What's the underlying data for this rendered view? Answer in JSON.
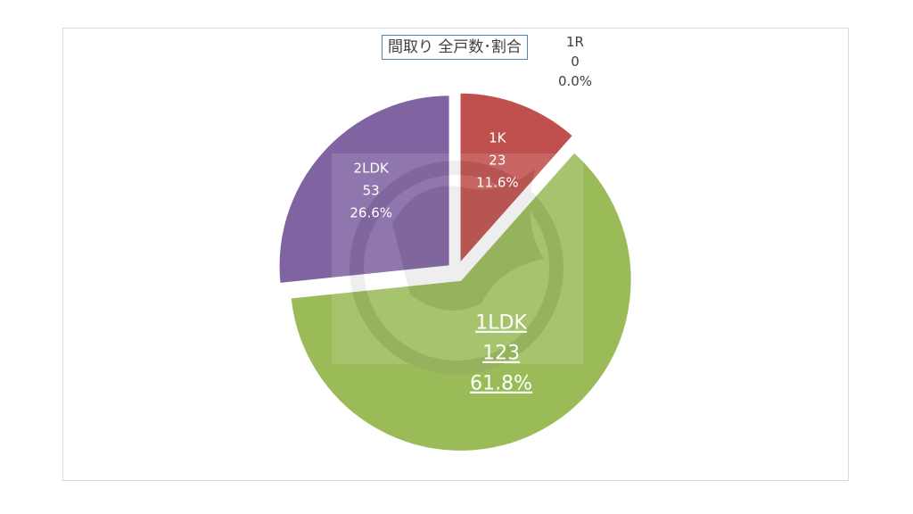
{
  "chart_data": {
    "type": "pie",
    "title": "間取り 全戸数･割合",
    "categories": [
      "1R",
      "1K",
      "1LDK",
      "2LDK"
    ],
    "values": [
      0,
      23,
      123,
      53
    ],
    "percents": [
      "0.0%",
      "11.6%",
      "61.8%",
      "26.6%"
    ],
    "colors": [
      "#4f81bd",
      "#c0504d",
      "#9bbb59",
      "#8064a2"
    ],
    "label_colors": [
      "#404040",
      "#ffffff",
      "#ffffff",
      "#ffffff"
    ],
    "exploded": true,
    "highlighted_label": "1LDK"
  }
}
